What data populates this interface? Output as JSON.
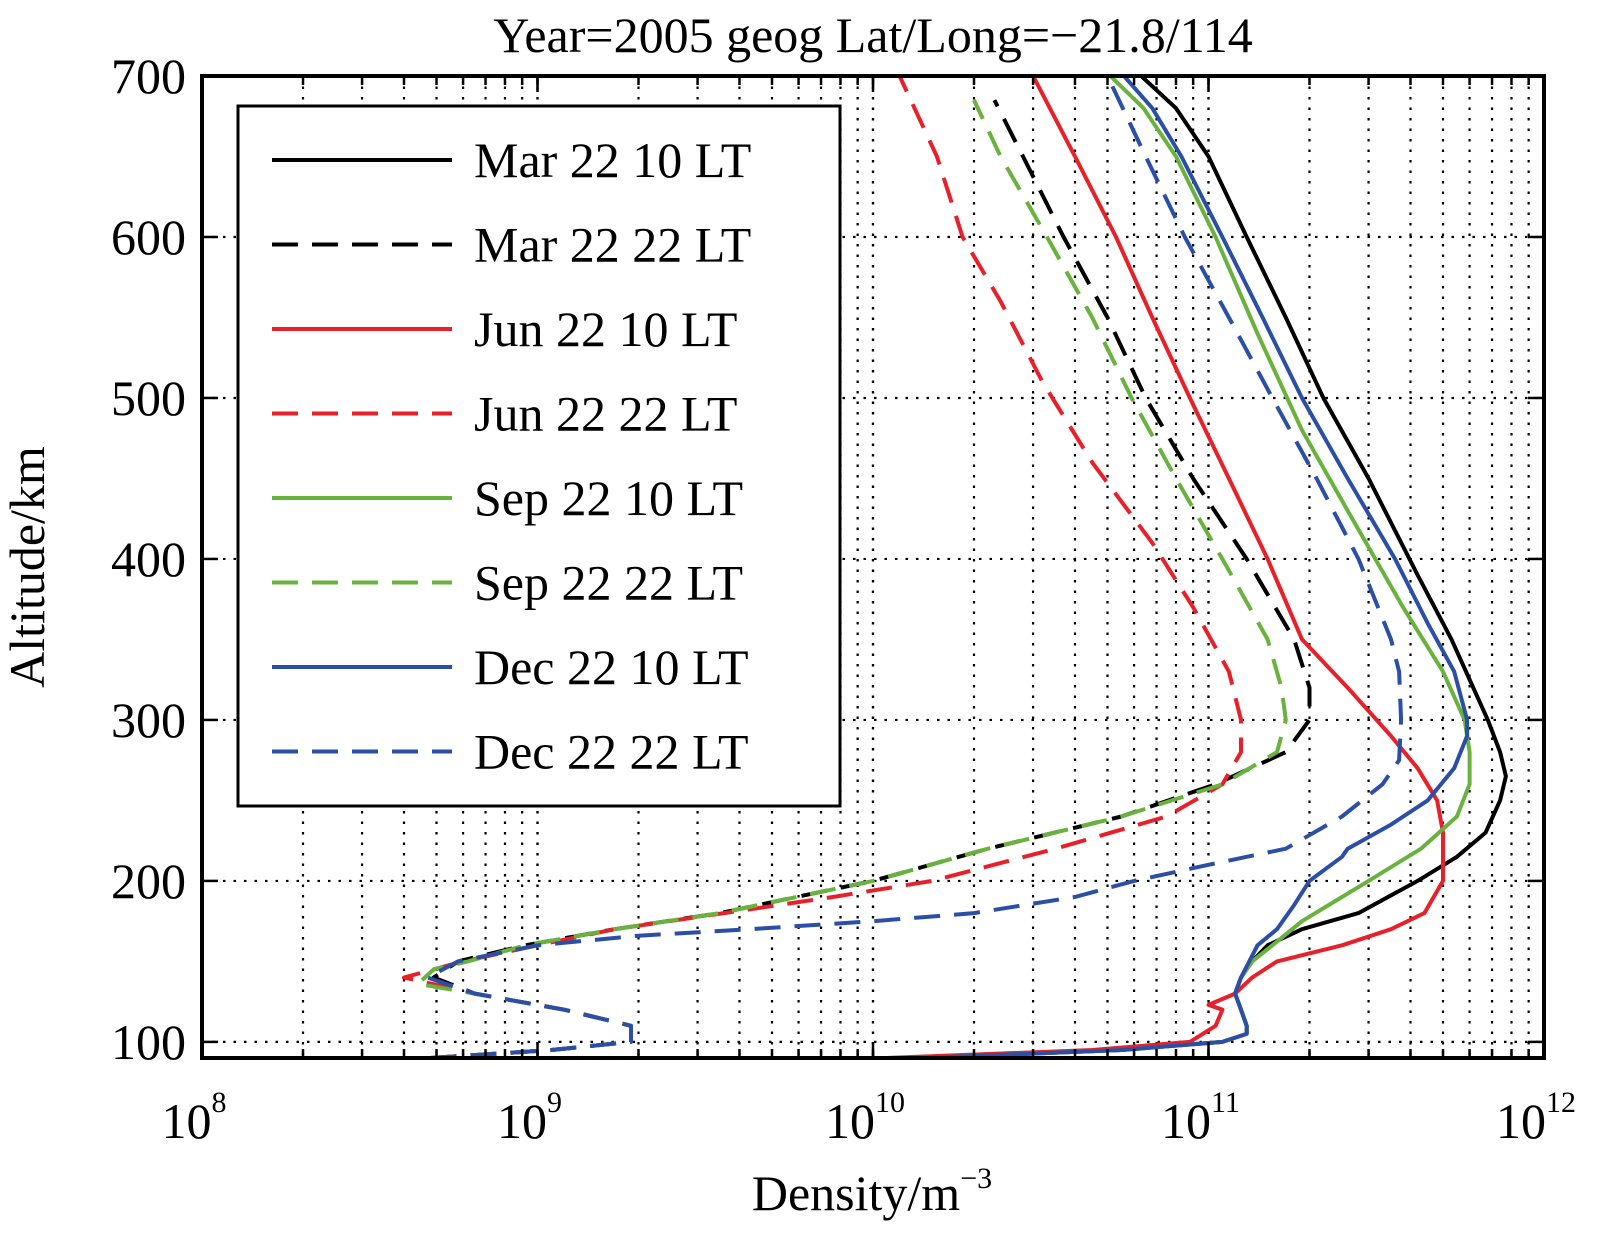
{
  "chart_data": {
    "type": "line",
    "title": "Year=2005  geog Lat/Long=−21.8/114",
    "xlabel": "Density/m",
    "xlabel_sup": "−3",
    "ylabel": "Altitude/km",
    "xscale": "log",
    "xlim": [
      100000000.0,
      1000000000000.0
    ],
    "ylim": [
      90,
      700
    ],
    "grid": true,
    "legend_position": "top-left",
    "y_ticks": [
      100,
      200,
      300,
      400,
      500,
      600,
      700
    ],
    "y_tick_labels": [
      "100",
      "200",
      "300",
      "400",
      "500",
      "600",
      "700"
    ],
    "x_ticks": [
      {
        "value": 100000000.0,
        "base": "10",
        "exp": "8"
      },
      {
        "value": 1000000000.0,
        "base": "10",
        "exp": "9"
      },
      {
        "value": 10000000000.0,
        "base": "10",
        "exp": "10"
      },
      {
        "value": 100000000000.0,
        "base": "10",
        "exp": "11"
      },
      {
        "value": 1000000000000.0,
        "base": "10",
        "exp": "12"
      }
    ],
    "series": [
      {
        "name": "Mar 22 10 LT",
        "color": "#000000",
        "dash": false,
        "points": [
          [
            14000000000.0,
            90
          ],
          [
            55000000000.0,
            95
          ],
          [
            110000000000.0,
            100
          ],
          [
            130000000000.0,
            105
          ],
          [
            130000000000.0,
            110
          ],
          [
            125000000000.0,
            120
          ],
          [
            120000000000.0,
            130
          ],
          [
            125000000000.0,
            140
          ],
          [
            135000000000.0,
            150
          ],
          [
            150000000000.0,
            160
          ],
          [
            190000000000.0,
            170
          ],
          [
            280000000000.0,
            180
          ],
          [
            420000000000.0,
            200
          ],
          [
            550000000000.0,
            215
          ],
          [
            670000000000.0,
            230
          ],
          [
            740000000000.0,
            250
          ],
          [
            770000000000.0,
            265
          ],
          [
            740000000000.0,
            280
          ],
          [
            680000000000.0,
            300
          ],
          [
            530000000000.0,
            350
          ],
          [
            420000000000.0,
            390
          ],
          [
            300000000000.0,
            450
          ],
          [
            220000000000.0,
            500
          ],
          [
            170000000000.0,
            550
          ],
          [
            130000000000.0,
            600
          ],
          [
            100000000000.0,
            650
          ],
          [
            80000000000.0,
            680
          ],
          [
            63000000000.0,
            700
          ]
        ]
      },
      {
        "name": "Mar 22 22 LT",
        "color": "#000000",
        "dash": true,
        "points": [
          [
            480000000.0,
            90
          ],
          [
            1100000000.0,
            95
          ],
          [
            1900000000.0,
            100
          ],
          [
            1900000000.0,
            110
          ],
          [
            1200000000.0,
            120
          ],
          [
            650000000.0,
            130
          ],
          [
            490000000.0,
            140
          ],
          [
            580000000.0,
            150
          ],
          [
            920000000.0,
            160
          ],
          [
            1700000000.0,
            170
          ],
          [
            3500000000.0,
            180
          ],
          [
            10000000000.0,
            200
          ],
          [
            22000000000.0,
            220
          ],
          [
            55000000000.0,
            240
          ],
          [
            105000000000.0,
            260
          ],
          [
            170000000000.0,
            280
          ],
          [
            200000000000.0,
            300
          ],
          [
            200000000000.0,
            320
          ],
          [
            180000000000.0,
            350
          ],
          [
            130000000000.0,
            400
          ],
          [
            90000000000.0,
            450
          ],
          [
            65000000000.0,
            500
          ],
          [
            50000000000.0,
            550
          ],
          [
            37000000000.0,
            600
          ],
          [
            28000000000.0,
            650
          ],
          [
            23000000000.0,
            685
          ]
        ]
      },
      {
        "name": "Jun 22 10 LT",
        "color": "#e8202a",
        "dash": false,
        "points": [
          [
            11000000000.0,
            90
          ],
          [
            45000000000.0,
            95
          ],
          [
            88000000000.0,
            100
          ],
          [
            105000000000.0,
            110
          ],
          [
            110000000000.0,
            120
          ],
          [
            100000000000.0,
            123
          ],
          [
            120000000000.0,
            130
          ],
          [
            135000000000.0,
            140
          ],
          [
            160000000000.0,
            150
          ],
          [
            250000000000.0,
            160
          ],
          [
            350000000000.0,
            170
          ],
          [
            440000000000.0,
            180
          ],
          [
            500000000000.0,
            200
          ],
          [
            500000000000.0,
            230
          ],
          [
            480000000000.0,
            250
          ],
          [
            420000000000.0,
            270
          ],
          [
            350000000000.0,
            290
          ],
          [
            260000000000.0,
            320
          ],
          [
            190000000000.0,
            350
          ],
          [
            150000000000.0,
            400
          ],
          [
            115000000000.0,
            450
          ],
          [
            88000000000.0,
            500
          ],
          [
            68000000000.0,
            550
          ],
          [
            53000000000.0,
            600
          ],
          [
            40000000000.0,
            650
          ],
          [
            30000000000.0,
            700
          ]
        ]
      },
      {
        "name": "Jun 22 22 LT",
        "color": "#e8202a",
        "dash": true,
        "points": [
          [
            480000000.0,
            90
          ],
          [
            1100000000.0,
            95
          ],
          [
            1900000000.0,
            100
          ],
          [
            1900000000.0,
            110
          ],
          [
            1200000000.0,
            120
          ],
          [
            650000000.0,
            130
          ],
          [
            400000000.0,
            140
          ],
          [
            600000000.0,
            150
          ],
          [
            1000000000.0,
            160
          ],
          [
            1700000000.0,
            170
          ],
          [
            3600000000.0,
            180
          ],
          [
            7600000000.0,
            190
          ],
          [
            15000000000.0,
            200
          ],
          [
            35000000000.0,
            220
          ],
          [
            75000000000.0,
            240
          ],
          [
            110000000000.0,
            260
          ],
          [
            125000000000.0,
            280
          ],
          [
            125000000000.0,
            300
          ],
          [
            115000000000.0,
            330
          ],
          [
            90000000000.0,
            370
          ],
          [
            68000000000.0,
            410
          ],
          [
            45000000000.0,
            460
          ],
          [
            32000000000.0,
            510
          ],
          [
            24000000000.0,
            560
          ],
          [
            18500000000.0,
            600
          ],
          [
            15500000000.0,
            650
          ],
          [
            12000000000.0,
            700
          ]
        ]
      },
      {
        "name": "Sep 22 10 LT",
        "color": "#6ab23e",
        "dash": false,
        "points": [
          [
            14000000000.0,
            90
          ],
          [
            55000000000.0,
            95
          ],
          [
            110000000000.0,
            100
          ],
          [
            130000000000.0,
            105
          ],
          [
            130000000000.0,
            110
          ],
          [
            125000000000.0,
            120
          ],
          [
            120000000000.0,
            130
          ],
          [
            125000000000.0,
            140
          ],
          [
            135000000000.0,
            150
          ],
          [
            155000000000.0,
            160
          ],
          [
            190000000000.0,
            175
          ],
          [
            250000000000.0,
            190
          ],
          [
            300000000000.0,
            200
          ],
          [
            430000000000.0,
            220
          ],
          [
            550000000000.0,
            240
          ],
          [
            600000000000.0,
            260
          ],
          [
            600000000000.0,
            280
          ],
          [
            580000000000.0,
            300
          ],
          [
            500000000000.0,
            330
          ],
          [
            380000000000.0,
            370
          ],
          [
            260000000000.0,
            430
          ],
          [
            190000000000.0,
            480
          ],
          [
            140000000000.0,
            540
          ],
          [
            105000000000.0,
            600
          ],
          [
            80000000000.0,
            650
          ],
          [
            64000000000.0,
            680
          ],
          [
            51000000000.0,
            700
          ]
        ]
      },
      {
        "name": "Sep 22 22 LT",
        "color": "#6ab23e",
        "dash": true,
        "points": [
          [
            480000000.0,
            90
          ],
          [
            1100000000.0,
            95
          ],
          [
            1900000000.0,
            100
          ],
          [
            1900000000.0,
            110
          ],
          [
            1200000000.0,
            120
          ],
          [
            650000000.0,
            130
          ],
          [
            440000000.0,
            136
          ],
          [
            490000000.0,
            145
          ],
          [
            620000000.0,
            150
          ],
          [
            920000000.0,
            160
          ],
          [
            1700000000.0,
            170
          ],
          [
            3500000000.0,
            180
          ],
          [
            10000000000.0,
            200
          ],
          [
            22000000000.0,
            220
          ],
          [
            55000000000.0,
            240
          ],
          [
            110000000000.0,
            260
          ],
          [
            160000000000.0,
            280
          ],
          [
            170000000000.0,
            300
          ],
          [
            165000000000.0,
            320
          ],
          [
            150000000000.0,
            350
          ],
          [
            110000000000.0,
            400
          ],
          [
            80000000000.0,
            450
          ],
          [
            59000000000.0,
            500
          ],
          [
            45000000000.0,
            550
          ],
          [
            33000000000.0,
            600
          ],
          [
            24000000000.0,
            650
          ],
          [
            20000000000.0,
            685
          ]
        ]
      },
      {
        "name": "Dec 22 10 LT",
        "color": "#2b4ea6",
        "dash": false,
        "points": [
          [
            14000000000.0,
            90
          ],
          [
            55000000000.0,
            95
          ],
          [
            110000000000.0,
            100
          ],
          [
            130000000000.0,
            105
          ],
          [
            130000000000.0,
            110
          ],
          [
            125000000000.0,
            120
          ],
          [
            120000000000.0,
            130
          ],
          [
            125000000000.0,
            140
          ],
          [
            140000000000.0,
            160
          ],
          [
            160000000000.0,
            170
          ],
          [
            180000000000.0,
            185
          ],
          [
            200000000000.0,
            200
          ],
          [
            250000000000.0,
            215
          ],
          [
            260000000000.0,
            220
          ],
          [
            350000000000.0,
            235
          ],
          [
            450000000000.0,
            250
          ],
          [
            540000000000.0,
            270
          ],
          [
            590000000000.0,
            290
          ],
          [
            590000000000.0,
            300
          ],
          [
            540000000000.0,
            330
          ],
          [
            450000000000.0,
            360
          ],
          [
            360000000000.0,
            400
          ],
          [
            260000000000.0,
            450
          ],
          [
            190000000000.0,
            500
          ],
          [
            145000000000.0,
            550
          ],
          [
            110000000000.0,
            600
          ],
          [
            83000000000.0,
            650
          ],
          [
            68000000000.0,
            680
          ],
          [
            56000000000.0,
            700
          ]
        ]
      },
      {
        "name": "Dec 22 22 LT",
        "color": "#2b4ea6",
        "dash": true,
        "points": [
          [
            480000000.0,
            90
          ],
          [
            1100000000.0,
            95
          ],
          [
            1900000000.0,
            100
          ],
          [
            1900000000.0,
            110
          ],
          [
            1200000000.0,
            120
          ],
          [
            650000000.0,
            130
          ],
          [
            470000000.0,
            140
          ],
          [
            580000000.0,
            150
          ],
          [
            1000000000.0,
            160
          ],
          [
            2000000000.0,
            166
          ],
          [
            4300000000.0,
            170
          ],
          [
            10000000000.0,
            175
          ],
          [
            20000000000.0,
            180
          ],
          [
            40000000000.0,
            190
          ],
          [
            60000000000.0,
            200
          ],
          [
            100000000000.0,
            210
          ],
          [
            170000000000.0,
            220
          ],
          [
            250000000000.0,
            240
          ],
          [
            330000000000.0,
            260
          ],
          [
            370000000000.0,
            275
          ],
          [
            375000000000.0,
            300
          ],
          [
            370000000000.0,
            330
          ],
          [
            350000000000.0,
            350
          ],
          [
            280000000000.0,
            400
          ],
          [
            210000000000.0,
            450
          ],
          [
            155000000000.0,
            500
          ],
          [
            115000000000.0,
            550
          ],
          [
            85000000000.0,
            600
          ],
          [
            65000000000.0,
            650
          ],
          [
            50000000000.0,
            700
          ]
        ]
      }
    ]
  }
}
